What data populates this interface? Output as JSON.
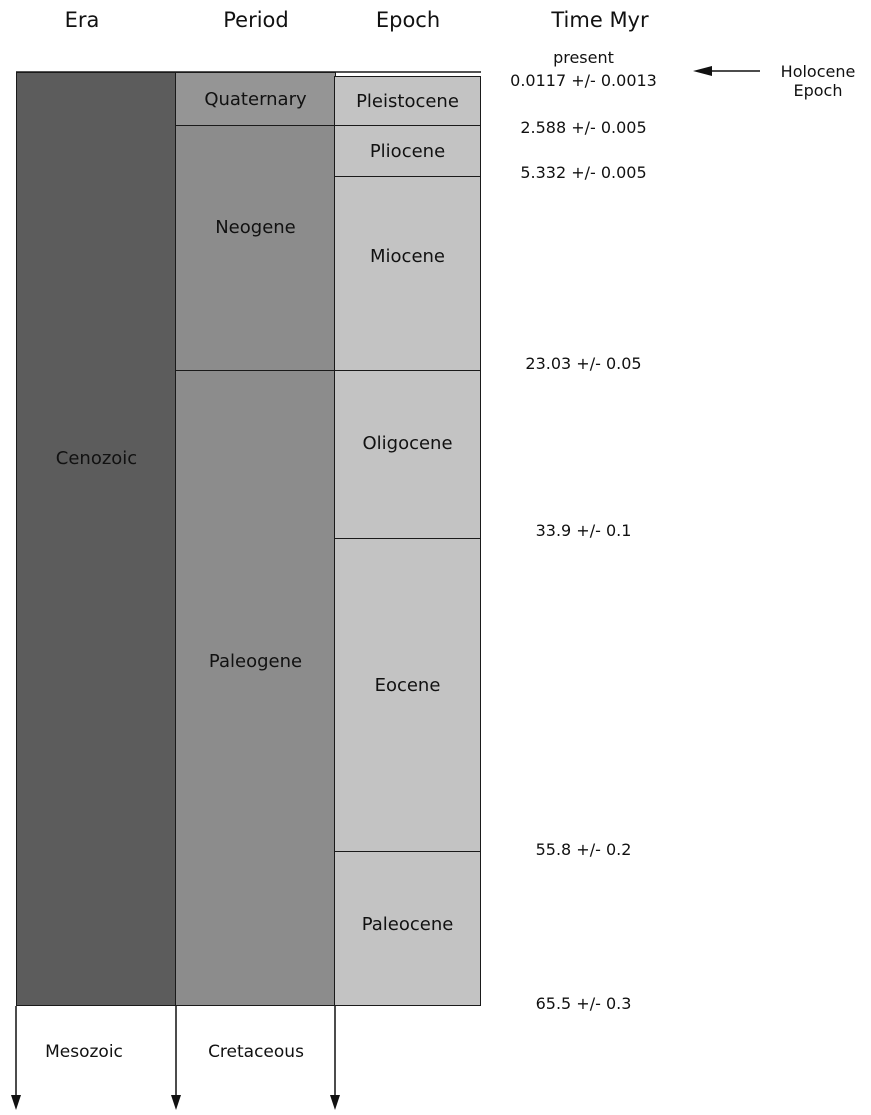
{
  "headers": {
    "era": "Era",
    "period": "Period",
    "epoch": "Epoch",
    "time": "Time Myr"
  },
  "eras": [
    {
      "name": "Cenozoic"
    }
  ],
  "periods": [
    {
      "name": "Quaternary"
    },
    {
      "name": "Neogene"
    },
    {
      "name": "Paleogene"
    }
  ],
  "epochs": [
    {
      "name": "Pleistocene"
    },
    {
      "name": "Pliocene"
    },
    {
      "name": "Miocene"
    },
    {
      "name": "Oligocene"
    },
    {
      "name": "Eocene"
    },
    {
      "name": "Paleocene"
    }
  ],
  "times": [
    "present",
    "0.0117  +/-  0.0013",
    "2.588  +/-  0.005",
    "5.332  +/-  0.005",
    "23.03  +/-  0.05",
    "33.9  +/- 0.1",
    "55.8  +/-  0.2",
    "65.5  +/-  0.3"
  ],
  "holocene": {
    "line1": "Holocene",
    "line2": "Epoch"
  },
  "below": {
    "era": "Mesozoic",
    "period": "Cretaceous"
  },
  "colors": {
    "era": "#5c5c5c",
    "period": "#8c8c8c",
    "quaternary": "#959595",
    "epoch": "#c3c3c3"
  }
}
